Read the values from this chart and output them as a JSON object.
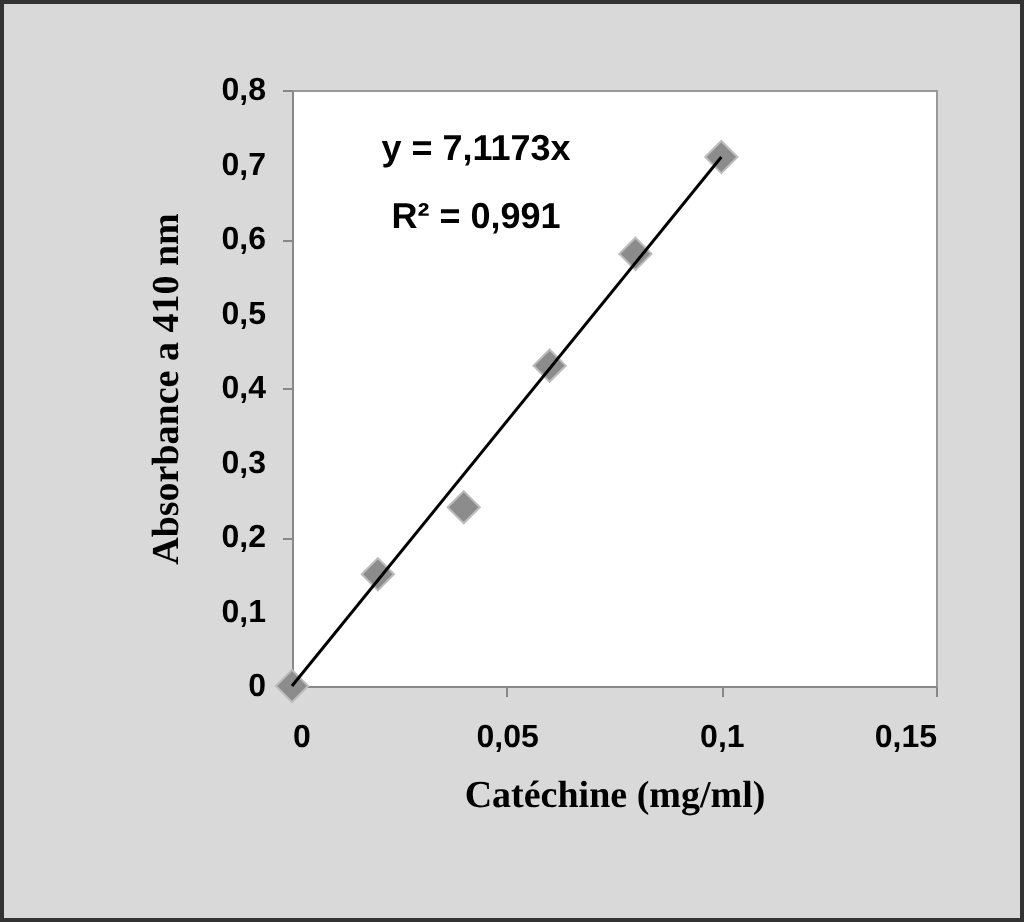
{
  "chart_data": {
    "type": "scatter",
    "xlabel": "Catéchine (mg/ml)",
    "ylabel": "Absorbance a 410 nm",
    "x": [
      0,
      0.02,
      0.04,
      0.06,
      0.08,
      0.1
    ],
    "series": [
      {
        "color": "#8c8c8c",
        "marker": "diamond",
        "values": [
          0,
          0.15,
          0.24,
          0.43,
          0.58,
          0.71
        ]
      },
      {
        "type": "line",
        "color": "#000000",
        "marker": "none",
        "x": [
          0,
          0.1
        ],
        "values": [
          0,
          0.71
        ]
      }
    ],
    "xlim": [
      0,
      0.15
    ],
    "xticks": [
      0,
      {
        "value": 0.05,
        "label": "0,05"
      },
      {
        "value": 0.1,
        "label": "0,1"
      },
      {
        "value": 0.15,
        "label": "0,15"
      }
    ],
    "ylim": [
      0,
      0.8
    ],
    "yticks": [
      0,
      {
        "value": 0.1,
        "label": "0,1"
      },
      {
        "value": 0.2,
        "label": "0,2"
      },
      {
        "value": 0.3,
        "label": "0,3"
      },
      {
        "value": 0.4,
        "label": "0,4"
      },
      {
        "value": 0.5,
        "label": "0,5"
      },
      {
        "value": 0.6,
        "label": "0,6"
      },
      {
        "value": 0.7,
        "label": "0,7"
      },
      {
        "value": 0.8,
        "label": "0,8"
      }
    ],
    "annotations": [
      "y = 7,1173x",
      "R² = 0,991"
    ],
    "grid": false
  }
}
